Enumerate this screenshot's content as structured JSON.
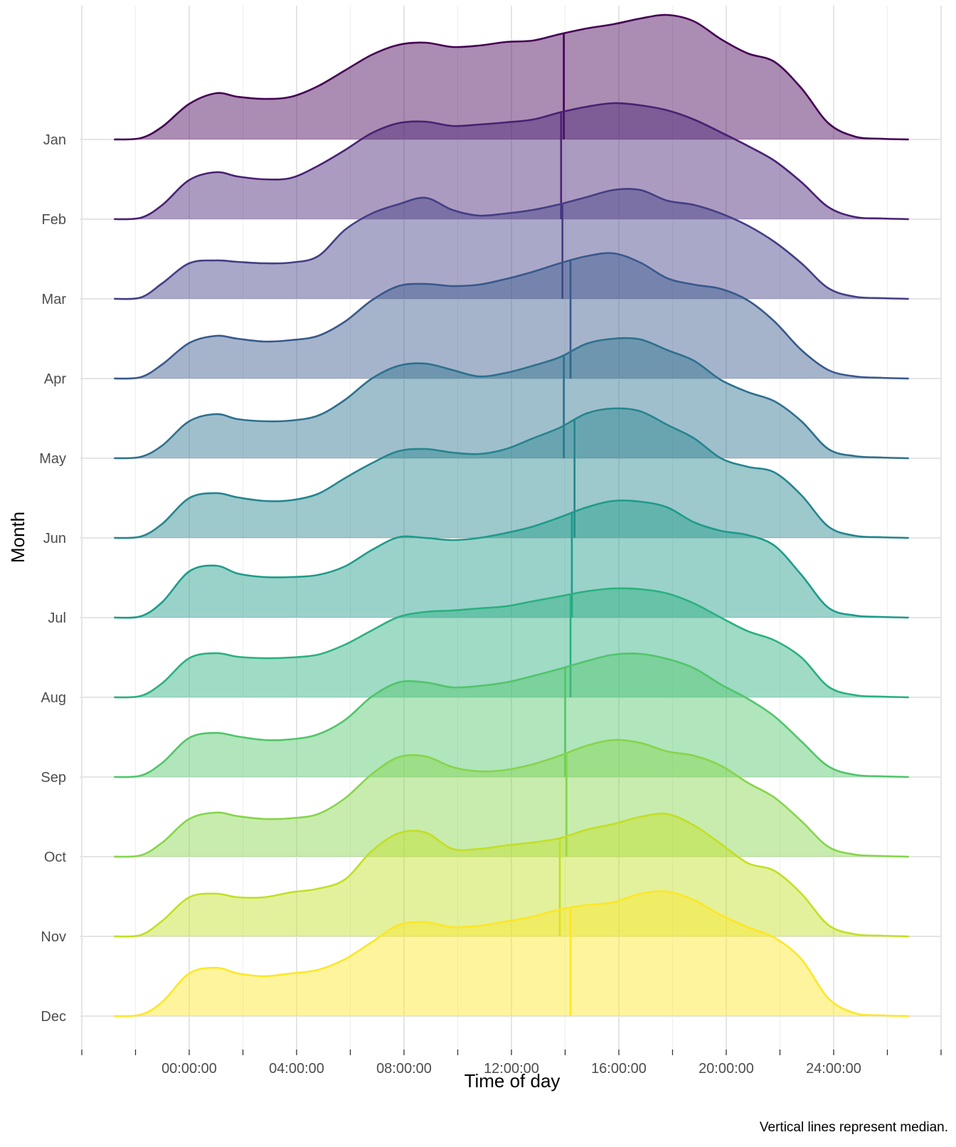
{
  "chart_data": {
    "type": "ridgeline-density",
    "xlabel": "Time of day",
    "ylabel": "Month",
    "caption": "Vertical lines represent median.",
    "x_range_hours": [
      -4,
      28
    ],
    "x_ticks": [
      {
        "value": 0,
        "label": "00:00:00"
      },
      {
        "value": 4,
        "label": "04:00:00"
      },
      {
        "value": 8,
        "label": "08:00:00"
      },
      {
        "value": 12,
        "label": "12:00:00"
      },
      {
        "value": 16,
        "label": "16:00:00"
      },
      {
        "value": 20,
        "label": "20:00:00"
      },
      {
        "value": 24,
        "label": "24:00:00"
      }
    ],
    "density_x_hours": [
      -2.8,
      -1.8,
      -1.0,
      0.0,
      1.0,
      1.8,
      2.8,
      3.8,
      4.8,
      5.8,
      6.8,
      7.8,
      8.8,
      9.8,
      10.8,
      11.8,
      12.8,
      13.8,
      14.8,
      15.8,
      16.8,
      17.8,
      18.8,
      19.8,
      20.8,
      21.8,
      22.8,
      23.8,
      24.8,
      25.8,
      26.8
    ],
    "grid": true,
    "legend": "none",
    "palette": "viridis",
    "series": [
      {
        "name": "Jan",
        "color": "#440154",
        "median_hours": 13.95,
        "density": [
          0.0,
          0.02,
          0.18,
          0.5,
          0.65,
          0.6,
          0.57,
          0.6,
          0.75,
          0.97,
          1.19,
          1.33,
          1.36,
          1.3,
          1.32,
          1.37,
          1.39,
          1.48,
          1.56,
          1.62,
          1.7,
          1.75,
          1.66,
          1.41,
          1.21,
          1.09,
          0.72,
          0.23,
          0.04,
          0.01,
          0.0
        ]
      },
      {
        "name": "Feb",
        "color": "#482173",
        "median_hours": 13.85,
        "density": [
          0.0,
          0.02,
          0.2,
          0.55,
          0.66,
          0.6,
          0.56,
          0.58,
          0.75,
          0.97,
          1.21,
          1.35,
          1.37,
          1.31,
          1.33,
          1.36,
          1.4,
          1.5,
          1.58,
          1.63,
          1.6,
          1.53,
          1.4,
          1.22,
          1.03,
          0.82,
          0.52,
          0.17,
          0.03,
          0.01,
          0.0
        ]
      },
      {
        "name": "Mar",
        "color": "#433E85",
        "median_hours": 13.9,
        "density": [
          0.0,
          0.02,
          0.22,
          0.5,
          0.54,
          0.52,
          0.5,
          0.51,
          0.6,
          0.97,
          1.2,
          1.33,
          1.42,
          1.25,
          1.17,
          1.2,
          1.25,
          1.33,
          1.43,
          1.53,
          1.53,
          1.38,
          1.32,
          1.2,
          1.03,
          0.8,
          0.5,
          0.15,
          0.03,
          0.01,
          0.0
        ]
      },
      {
        "name": "Apr",
        "color": "#38598C",
        "median_hours": 14.2,
        "density": [
          0.0,
          0.02,
          0.2,
          0.5,
          0.6,
          0.56,
          0.52,
          0.54,
          0.6,
          0.8,
          1.1,
          1.3,
          1.33,
          1.3,
          1.32,
          1.4,
          1.5,
          1.62,
          1.72,
          1.76,
          1.63,
          1.41,
          1.32,
          1.26,
          1.1,
          0.8,
          0.4,
          0.12,
          0.03,
          0.01,
          0.0
        ]
      },
      {
        "name": "May",
        "color": "#2D708E",
        "median_hours": 13.95,
        "density": [
          0.0,
          0.02,
          0.18,
          0.52,
          0.62,
          0.55,
          0.52,
          0.53,
          0.6,
          0.82,
          1.12,
          1.3,
          1.33,
          1.24,
          1.15,
          1.2,
          1.3,
          1.42,
          1.61,
          1.68,
          1.67,
          1.52,
          1.37,
          1.1,
          0.93,
          0.8,
          0.52,
          0.13,
          0.03,
          0.01,
          0.0
        ]
      },
      {
        "name": "Jun",
        "color": "#25858E",
        "median_hours": 14.35,
        "density": [
          0.0,
          0.02,
          0.2,
          0.56,
          0.63,
          0.57,
          0.52,
          0.53,
          0.62,
          0.84,
          1.05,
          1.22,
          1.25,
          1.2,
          1.18,
          1.25,
          1.4,
          1.55,
          1.75,
          1.82,
          1.78,
          1.59,
          1.4,
          1.12,
          1.0,
          0.92,
          0.6,
          0.16,
          0.03,
          0.01,
          0.0
        ]
      },
      {
        "name": "Jul",
        "color": "#1E9B8A",
        "median_hours": 14.25,
        "density": [
          0.0,
          0.02,
          0.22,
          0.65,
          0.73,
          0.62,
          0.57,
          0.57,
          0.6,
          0.72,
          0.95,
          1.13,
          1.12,
          1.09,
          1.12,
          1.19,
          1.28,
          1.41,
          1.55,
          1.64,
          1.63,
          1.55,
          1.34,
          1.22,
          1.16,
          1.01,
          0.6,
          0.14,
          0.03,
          0.01,
          0.0
        ]
      },
      {
        "name": "Aug",
        "color": "#2BB07F",
        "median_hours": 14.2,
        "density": [
          0.0,
          0.02,
          0.2,
          0.55,
          0.62,
          0.57,
          0.55,
          0.56,
          0.6,
          0.74,
          0.94,
          1.13,
          1.2,
          1.22,
          1.25,
          1.28,
          1.35,
          1.42,
          1.49,
          1.53,
          1.52,
          1.46,
          1.32,
          1.12,
          0.93,
          0.8,
          0.56,
          0.15,
          0.03,
          0.01,
          0.0
        ]
      },
      {
        "name": "Sep",
        "color": "#51C56A",
        "median_hours": 14.0,
        "density": [
          0.0,
          0.02,
          0.2,
          0.55,
          0.62,
          0.57,
          0.52,
          0.53,
          0.6,
          0.8,
          1.13,
          1.33,
          1.33,
          1.26,
          1.28,
          1.33,
          1.42,
          1.52,
          1.63,
          1.72,
          1.73,
          1.66,
          1.53,
          1.3,
          1.1,
          0.85,
          0.5,
          0.15,
          0.03,
          0.01,
          0.0
        ]
      },
      {
        "name": "Oct",
        "color": "#85D54A",
        "median_hours": 14.05,
        "density": [
          0.0,
          0.02,
          0.2,
          0.53,
          0.62,
          0.57,
          0.53,
          0.54,
          0.6,
          0.82,
          1.16,
          1.4,
          1.41,
          1.26,
          1.2,
          1.22,
          1.3,
          1.42,
          1.56,
          1.64,
          1.6,
          1.48,
          1.42,
          1.28,
          1.04,
          0.83,
          0.5,
          0.14,
          0.03,
          0.01,
          0.0
        ]
      },
      {
        "name": "Nov",
        "color": "#C2DF23",
        "median_hours": 13.8,
        "density": [
          0.0,
          0.02,
          0.22,
          0.55,
          0.6,
          0.55,
          0.55,
          0.62,
          0.67,
          0.8,
          1.2,
          1.45,
          1.46,
          1.23,
          1.23,
          1.28,
          1.32,
          1.38,
          1.5,
          1.58,
          1.68,
          1.72,
          1.56,
          1.3,
          1.03,
          0.92,
          0.6,
          0.16,
          0.03,
          0.01,
          0.0
        ]
      },
      {
        "name": "Dec",
        "color": "#FDE725",
        "median_hours": 14.2,
        "density": [
          0.0,
          0.02,
          0.2,
          0.6,
          0.68,
          0.6,
          0.56,
          0.6,
          0.65,
          0.8,
          1.04,
          1.28,
          1.32,
          1.25,
          1.27,
          1.33,
          1.4,
          1.5,
          1.56,
          1.6,
          1.72,
          1.75,
          1.63,
          1.42,
          1.25,
          1.1,
          0.8,
          0.25,
          0.04,
          0.01,
          0.0
        ]
      }
    ]
  }
}
